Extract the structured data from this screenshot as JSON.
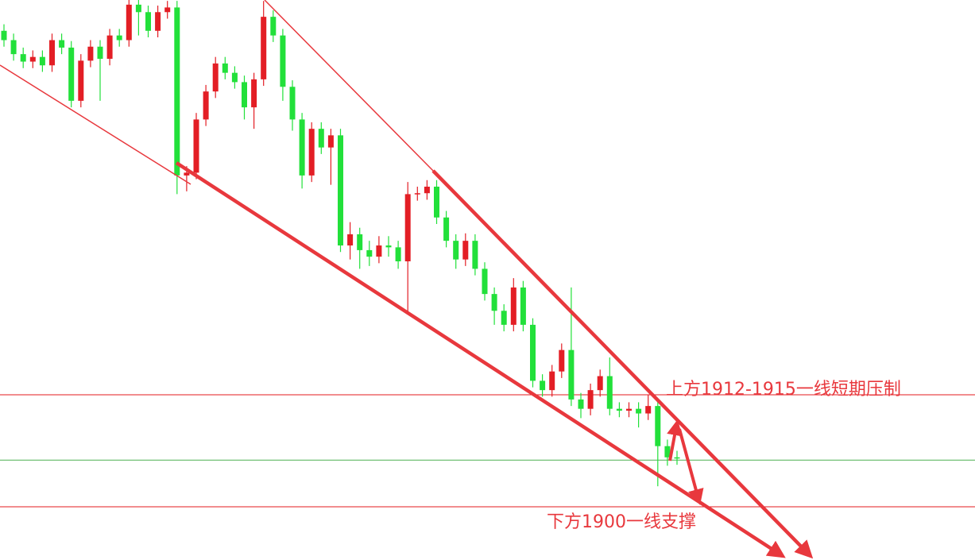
{
  "chart_data": {
    "type": "candlestick",
    "up_color": "#e31e25",
    "down_color": "#22e03a",
    "ylim": [
      1894.3,
      1954.3
    ],
    "open": [
      1951,
      1950,
      1948.5,
      1947.7,
      1948.2,
      1947.3,
      1950,
      1949.2,
      1943.5,
      1947.8,
      1949.3,
      1948,
      1950.5,
      1950,
      1953.8,
      1953,
      1951,
      1953,
      1953.5,
      1935.5,
      1935.8,
      1941.5,
      1944.5,
      1947.5,
      1946.5,
      1945.5,
      1942.8,
      1945.8,
      1952.5,
      1950.5,
      1945,
      1941.5,
      1935.5,
      1940.5,
      1938.5,
      1939.8,
      1928,
      1929.2,
      1927.5,
      1926.8,
      1928,
      1927.8,
      1926.3,
      1933.5,
      1933.6,
      1934.3,
      1931,
      1928.5,
      1926.5,
      1928.5,
      1925.5,
      1922.8,
      1921,
      1919.5,
      1923.5,
      1919.5,
      1913.5,
      1912.5,
      1914.5,
      1916.8,
      1911.5,
      1910.5,
      1912.5,
      1914,
      1910.5,
      1910.3,
      1910.5,
      1910,
      1910.8,
      1906.5,
      1905.3
    ],
    "high": [
      1951.7,
      1950.7,
      1949.2,
      1948.9,
      1948.9,
      1950.7,
      1950.7,
      1949.9,
      1948.5,
      1950,
      1950,
      1951.2,
      1951.2,
      1954.5,
      1954.5,
      1953.7,
      1953.7,
      1954.2,
      1954.2,
      1936.5,
      1942.2,
      1945.2,
      1948.2,
      1948.2,
      1947.2,
      1946.2,
      1946.5,
      1954.2,
      1953.2,
      1951.2,
      1945.7,
      1942.2,
      1941.2,
      1941.2,
      1940.5,
      1940.5,
      1930.5,
      1929.9,
      1928.5,
      1929,
      1929,
      1928.5,
      1934.8,
      1934.3,
      1935,
      1935,
      1931.7,
      1929.2,
      1929.3,
      1929.2,
      1926.2,
      1923.5,
      1921.7,
      1924.5,
      1924.2,
      1920.2,
      1914.2,
      1915.2,
      1917.5,
      1923.5,
      1912.2,
      1913.2,
      1914.7,
      1916,
      1911.2,
      1911.2,
      1911.2,
      1912,
      1911.5,
      1907.2,
      1906
    ],
    "low": [
      1949.3,
      1947.8,
      1947,
      1947,
      1946.6,
      1946.6,
      1948.5,
      1942.8,
      1942.8,
      1947.1,
      1943.5,
      1947.3,
      1949.3,
      1949.3,
      1950.5,
      1950.3,
      1950.3,
      1952.3,
      1933.5,
      1933.8,
      1935.1,
      1940.8,
      1943.8,
      1945.8,
      1944.8,
      1941.5,
      1940.5,
      1945.1,
      1949.8,
      1943.5,
      1940.3,
      1934.1,
      1934.8,
      1937.8,
      1934.5,
      1927.3,
      1926.5,
      1925.5,
      1925.8,
      1926.1,
      1926.8,
      1925.5,
      1920.6,
      1932.8,
      1932.9,
      1930.3,
      1927.8,
      1925.5,
      1925.8,
      1924.8,
      1922.1,
      1919.5,
      1918.8,
      1918.8,
      1918.8,
      1912.8,
      1911.8,
      1911.8,
      1913.8,
      1910.8,
      1909.5,
      1909.8,
      1911.8,
      1909.8,
      1909.6,
      1909.6,
      1908.5,
      1909.3,
      1902.2,
      1904.4,
      1904.5
    ],
    "close": [
      1950,
      1948.5,
      1947.7,
      1948.2,
      1947.3,
      1950,
      1949.2,
      1943.5,
      1947.8,
      1949.3,
      1948,
      1950.5,
      1950,
      1953.8,
      1953,
      1951,
      1953,
      1953.5,
      1935.5,
      1935.8,
      1941.5,
      1944.5,
      1947.5,
      1946.5,
      1945.5,
      1942.8,
      1945.8,
      1952.5,
      1950.5,
      1945,
      1941.5,
      1935.5,
      1940.5,
      1938.5,
      1939.8,
      1928,
      1929.2,
      1927.5,
      1926.8,
      1928,
      1927.8,
      1926.3,
      1933.5,
      1933.6,
      1934.3,
      1931,
      1928.5,
      1926.5,
      1928.5,
      1925.5,
      1922.8,
      1921,
      1919.5,
      1923.5,
      1919.5,
      1913.5,
      1912.5,
      1914.5,
      1916.8,
      1911.5,
      1910.5,
      1912.5,
      1914,
      1910.5,
      1910.3,
      1910.5,
      1910,
      1910.8,
      1906.5,
      1905.3,
      1905.2
    ],
    "levels": [
      {
        "value": 1912,
        "color": "#e31a1c"
      },
      {
        "value": 1905,
        "color": "#4caf50"
      },
      {
        "value": 1900,
        "color": "#e31a1c"
      }
    ],
    "annotations": [
      "上方1912-1915一线短期压制",
      "下方1900一线支撑"
    ],
    "annotation_color": "#e8383d"
  }
}
